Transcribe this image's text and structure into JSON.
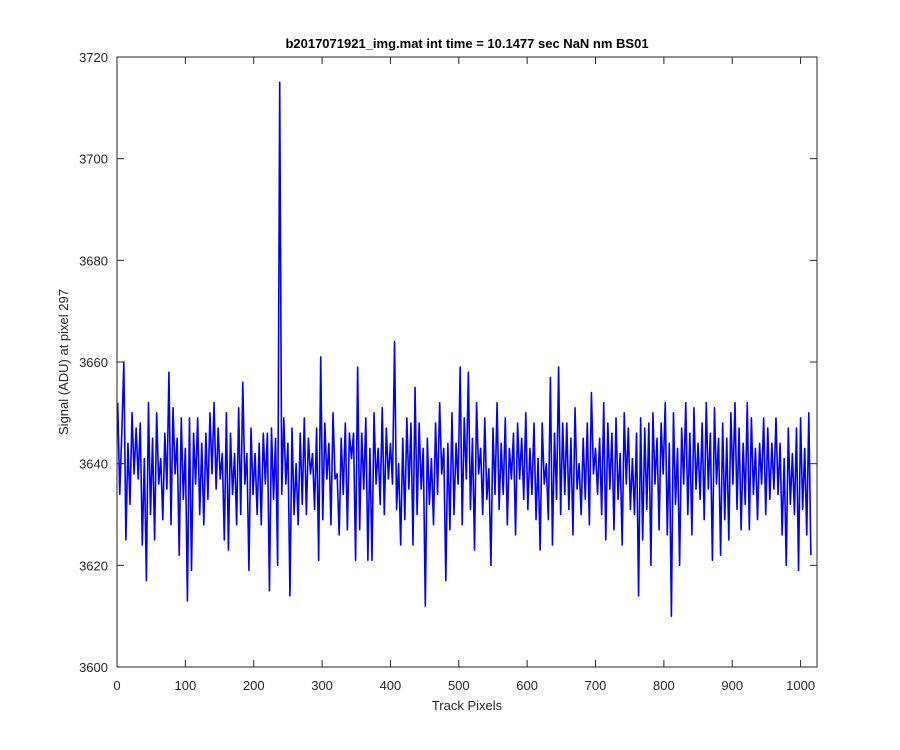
{
  "chart_data": {
    "type": "line",
    "title": "b2017071921_img.mat int time = 10.1477 sec  NaN nm BS01",
    "xlabel": "Track Pixels",
    "ylabel": "Signal (ADU) at pixel 297",
    "xlim": [
      0,
      1024
    ],
    "ylim": [
      3600,
      3720
    ],
    "x_ticks": [
      0,
      100,
      200,
      300,
      400,
      500,
      600,
      700,
      800,
      900,
      1000
    ],
    "y_ticks": [
      3600,
      3620,
      3640,
      3660,
      3680,
      3700,
      3720
    ],
    "grid": false,
    "legend": "none",
    "series": [
      {
        "color": "#0000ff",
        "x_start": 1,
        "x_step": 3,
        "values": [
          3652,
          3634,
          3646,
          3660,
          3625,
          3644,
          3632,
          3650,
          3638,
          3647,
          3637,
          3648,
          3624,
          3641,
          3617,
          3652,
          3630,
          3645,
          3625,
          3650,
          3636,
          3641,
          3629,
          3646,
          3635,
          3658,
          3628,
          3651,
          3638,
          3645,
          3622,
          3649,
          3633,
          3643,
          3613,
          3649,
          3619,
          3646,
          3636,
          3649,
          3630,
          3644,
          3628,
          3646,
          3633,
          3650,
          3638,
          3652,
          3635,
          3647,
          3637,
          3642,
          3625,
          3650,
          3623,
          3646,
          3634,
          3642,
          3628,
          3651,
          3630,
          3656,
          3636,
          3642,
          3619,
          3647,
          3634,
          3642,
          3630,
          3644,
          3628,
          3646,
          3636,
          3646,
          3615,
          3647,
          3633,
          3645,
          3620,
          3715,
          3634,
          3649,
          3636,
          3644,
          3614,
          3647,
          3630,
          3640,
          3628,
          3646,
          3632,
          3649,
          3630,
          3645,
          3638,
          3642,
          3631,
          3647,
          3621,
          3661,
          3629,
          3648,
          3637,
          3644,
          3628,
          3650,
          3637,
          3638,
          3626,
          3645,
          3634,
          3648,
          3627,
          3646,
          3641,
          3646,
          3621,
          3659,
          3627,
          3646,
          3635,
          3649,
          3621,
          3643,
          3621,
          3650,
          3636,
          3643,
          3632,
          3651,
          3630,
          3647,
          3637,
          3644,
          3636,
          3664,
          3631,
          3640,
          3624,
          3645,
          3629,
          3649,
          3635,
          3648,
          3624,
          3655,
          3630,
          3648,
          3635,
          3643,
          3612,
          3645,
          3632,
          3641,
          3628,
          3648,
          3634,
          3652,
          3638,
          3643,
          3617,
          3644,
          3627,
          3650,
          3630,
          3644,
          3636,
          3659,
          3628,
          3649,
          3637,
          3658,
          3631,
          3645,
          3623,
          3652,
          3638,
          3643,
          3630,
          3649,
          3633,
          3639,
          3620,
          3647,
          3634,
          3652,
          3631,
          3644,
          3634,
          3649,
          3628,
          3643,
          3637,
          3646,
          3626,
          3648,
          3637,
          3645,
          3633,
          3650,
          3631,
          3643,
          3634,
          3648,
          3629,
          3641,
          3623,
          3648,
          3636,
          3640,
          3629,
          3657,
          3624,
          3646,
          3633,
          3659,
          3630,
          3648,
          3634,
          3648,
          3631,
          3645,
          3626,
          3651,
          3635,
          3640,
          3630,
          3645,
          3633,
          3648,
          3628,
          3654,
          3638,
          3643,
          3634,
          3645,
          3630,
          3652,
          3625,
          3648,
          3635,
          3646,
          3627,
          3649,
          3633,
          3642,
          3624,
          3650,
          3636,
          3647,
          3631,
          3641,
          3630,
          3646,
          3614,
          3649,
          3625,
          3647,
          3631,
          3648,
          3620,
          3650,
          3636,
          3645,
          3627,
          3648,
          3638,
          3652,
          3626,
          3644,
          3610,
          3650,
          3632,
          3643,
          3620,
          3647,
          3636,
          3652,
          3630,
          3646,
          3626,
          3651,
          3635,
          3644,
          3633,
          3648,
          3629,
          3652,
          3635,
          3646,
          3621,
          3651,
          3636,
          3645,
          3622,
          3648,
          3629,
          3645,
          3625,
          3650,
          3636,
          3652,
          3631,
          3647,
          3627,
          3644,
          3632,
          3652,
          3627,
          3649,
          3634,
          3643,
          3629,
          3644,
          3636,
          3649,
          3630,
          3647,
          3633,
          3644,
          3635,
          3649,
          3634,
          3644,
          3626,
          3641,
          3620,
          3647,
          3632,
          3642,
          3630,
          3647,
          3619,
          3649,
          3631,
          3643,
          3626,
          3650,
          3622
        ]
      }
    ]
  }
}
